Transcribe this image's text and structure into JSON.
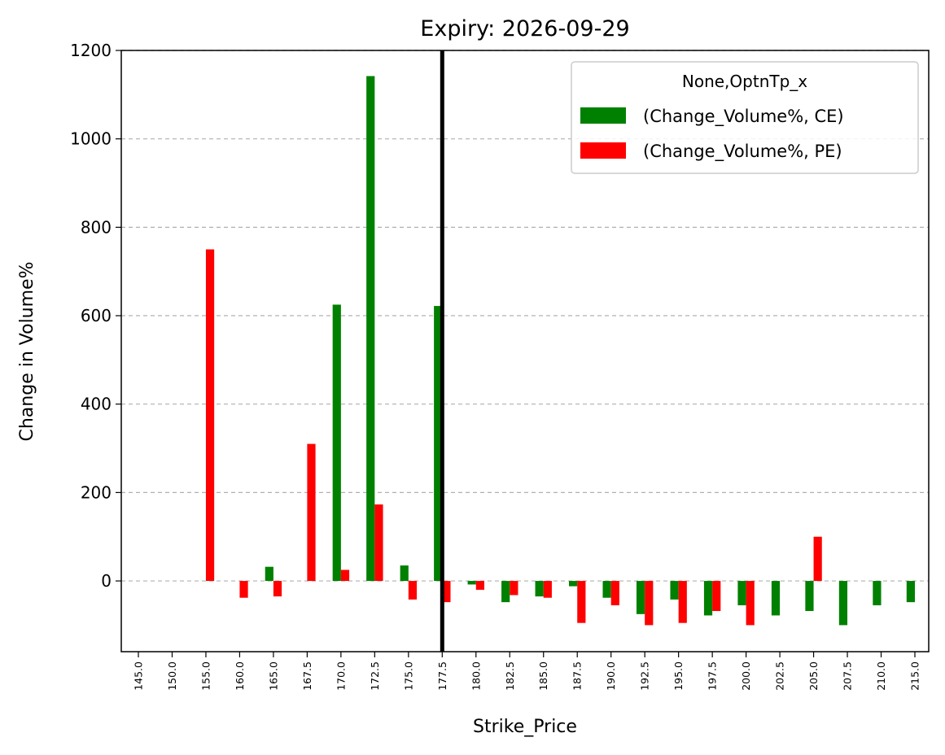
{
  "chart_data": {
    "type": "bar",
    "title": "Expiry: 2026-09-29",
    "xlabel": "Strike_Price",
    "ylabel": "Change in Volume%",
    "categories": [
      "145.0",
      "150.0",
      "155.0",
      "160.0",
      "165.0",
      "167.5",
      "170.0",
      "172.5",
      "175.0",
      "177.5",
      "180.0",
      "182.5",
      "185.0",
      "187.5",
      "190.0",
      "192.5",
      "195.0",
      "197.5",
      "200.0",
      "202.5",
      "205.0",
      "207.5",
      "210.0",
      "215.0"
    ],
    "series": [
      {
        "name": "(Change_Volume%, CE)",
        "color": "#008000",
        "values": [
          null,
          null,
          null,
          null,
          32,
          null,
          625,
          1142,
          35,
          622,
          -8,
          -48,
          -35,
          -12,
          -38,
          -75,
          -42,
          -78,
          -55,
          -78,
          -68,
          -100,
          -55,
          -48
        ]
      },
      {
        "name": "(Change_Volume%, PE)",
        "color": "#ff0000",
        "values": [
          null,
          null,
          750,
          -38,
          -35,
          310,
          25,
          173,
          -42,
          -48,
          -20,
          -32,
          -38,
          -95,
          -55,
          -100,
          -95,
          -68,
          -100,
          null,
          100,
          null,
          null,
          null
        ]
      }
    ],
    "ylim": [
      -160,
      1200
    ],
    "yticks": [
      0,
      200,
      400,
      600,
      800,
      1000,
      1200
    ],
    "grid": "y-dashed",
    "vline": {
      "category": "177.5",
      "color": "#000000"
    },
    "legend": {
      "title": "None,OptnTp_x",
      "position": "top-right"
    }
  }
}
